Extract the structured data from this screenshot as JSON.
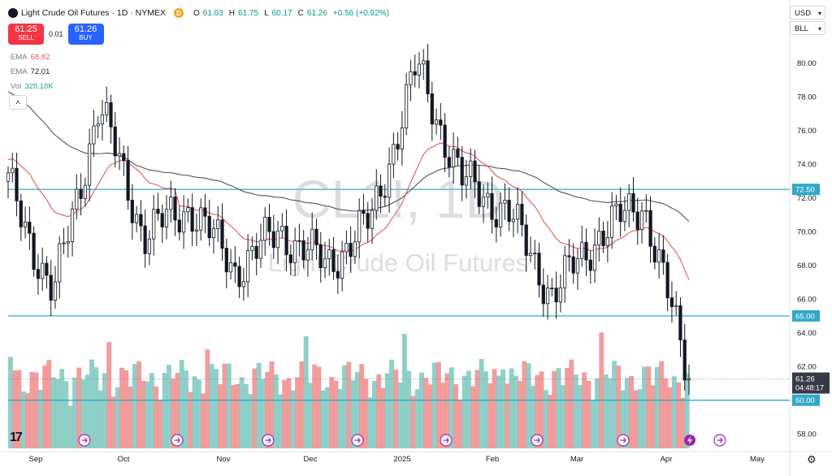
{
  "header": {
    "symbol_title": "Light Crude Oil Futures · 1D · NYMEX",
    "market_badge": "D",
    "ohlc": [
      {
        "k": "O",
        "v": "61.03"
      },
      {
        "k": "H",
        "v": "61.75"
      },
      {
        "k": "L",
        "v": "60.17"
      },
      {
        "k": "C",
        "v": "61.26"
      }
    ],
    "change": "+0.56 (+0.92%)"
  },
  "trade": {
    "sell_price": "61.25",
    "sell_label": "SELL",
    "spread": "0.01",
    "buy_price": "61.26",
    "buy_label": "BUY"
  },
  "indicators": [
    {
      "name": "EMA",
      "value": "68.82"
    },
    {
      "name": "EMA",
      "value": "72.01"
    },
    {
      "name": "Vol",
      "value": "328.18K"
    }
  ],
  "controls": {
    "currency": "USD",
    "unit": "BLL",
    "collapse_glyph": "˄",
    "tv_logo": "17"
  },
  "watermark": {
    "symbol": "CL1!, 1D",
    "name": "Light Crude Oil Futures"
  },
  "price_axis": {
    "ticks": [
      "80.00",
      "78.00",
      "76.00",
      "74.00",
      "72.00",
      "70.00",
      "68.00",
      "66.00",
      "64.00",
      "62.00",
      "60.00",
      "58.00"
    ],
    "current_price": "61.26",
    "countdown": "04:48:17"
  },
  "time_axis": {
    "labels": [
      "Sep",
      "Oct",
      "Nov",
      "Dec",
      "2025",
      "Feb",
      "Mar",
      "Apr",
      "May"
    ]
  },
  "colors": {
    "up": "#26a69a",
    "down": "#131722",
    "vol_up": "#7ec8c0",
    "vol_down": "#f08c8c",
    "level_line": "#31a8c8",
    "ema_fast": "#e05b5b",
    "ema_slow": "#555555",
    "accent": "#2962ff"
  },
  "chart_data": {
    "type": "candlestick",
    "title": "Light Crude Oil Futures",
    "instrument": "CL1!",
    "timeframe": "1D",
    "ylim": [
      57,
      81.8
    ],
    "grid": false,
    "horizontal_levels": [
      {
        "price": 72.5,
        "label": "72.50"
      },
      {
        "price": 65.0,
        "label": "65.00"
      },
      {
        "price": 60.0,
        "label": "60.00"
      }
    ],
    "key_points": [
      {
        "period": "Sep",
        "close": 72.8
      },
      {
        "period": "Sep",
        "close": 66.2
      },
      {
        "period": "Oct",
        "close": 77.5
      },
      {
        "period": "Oct",
        "close": 69.8
      },
      {
        "period": "Nov",
        "close": 71.5
      },
      {
        "period": "Nov",
        "close": 67.8
      },
      {
        "period": "Dec",
        "close": 70.0
      },
      {
        "period": "Dec",
        "close": 68.0
      },
      {
        "period": "2025",
        "close": 70.6
      },
      {
        "period": "2025",
        "close": 79.8
      },
      {
        "period": "Feb",
        "close": 73.0
      },
      {
        "period": "Feb",
        "close": 71.2
      },
      {
        "period": "Mar",
        "close": 66.2
      },
      {
        "period": "Mar",
        "close": 69.8
      },
      {
        "period": "Apr",
        "close": 71.7
      },
      {
        "period": "Apr",
        "close": 61.26
      }
    ],
    "series": [
      {
        "name": "EMA",
        "last": 68.82
      },
      {
        "name": "EMA",
        "last": 72.01
      },
      {
        "name": "Vol",
        "last": "328.18K"
      }
    ]
  }
}
